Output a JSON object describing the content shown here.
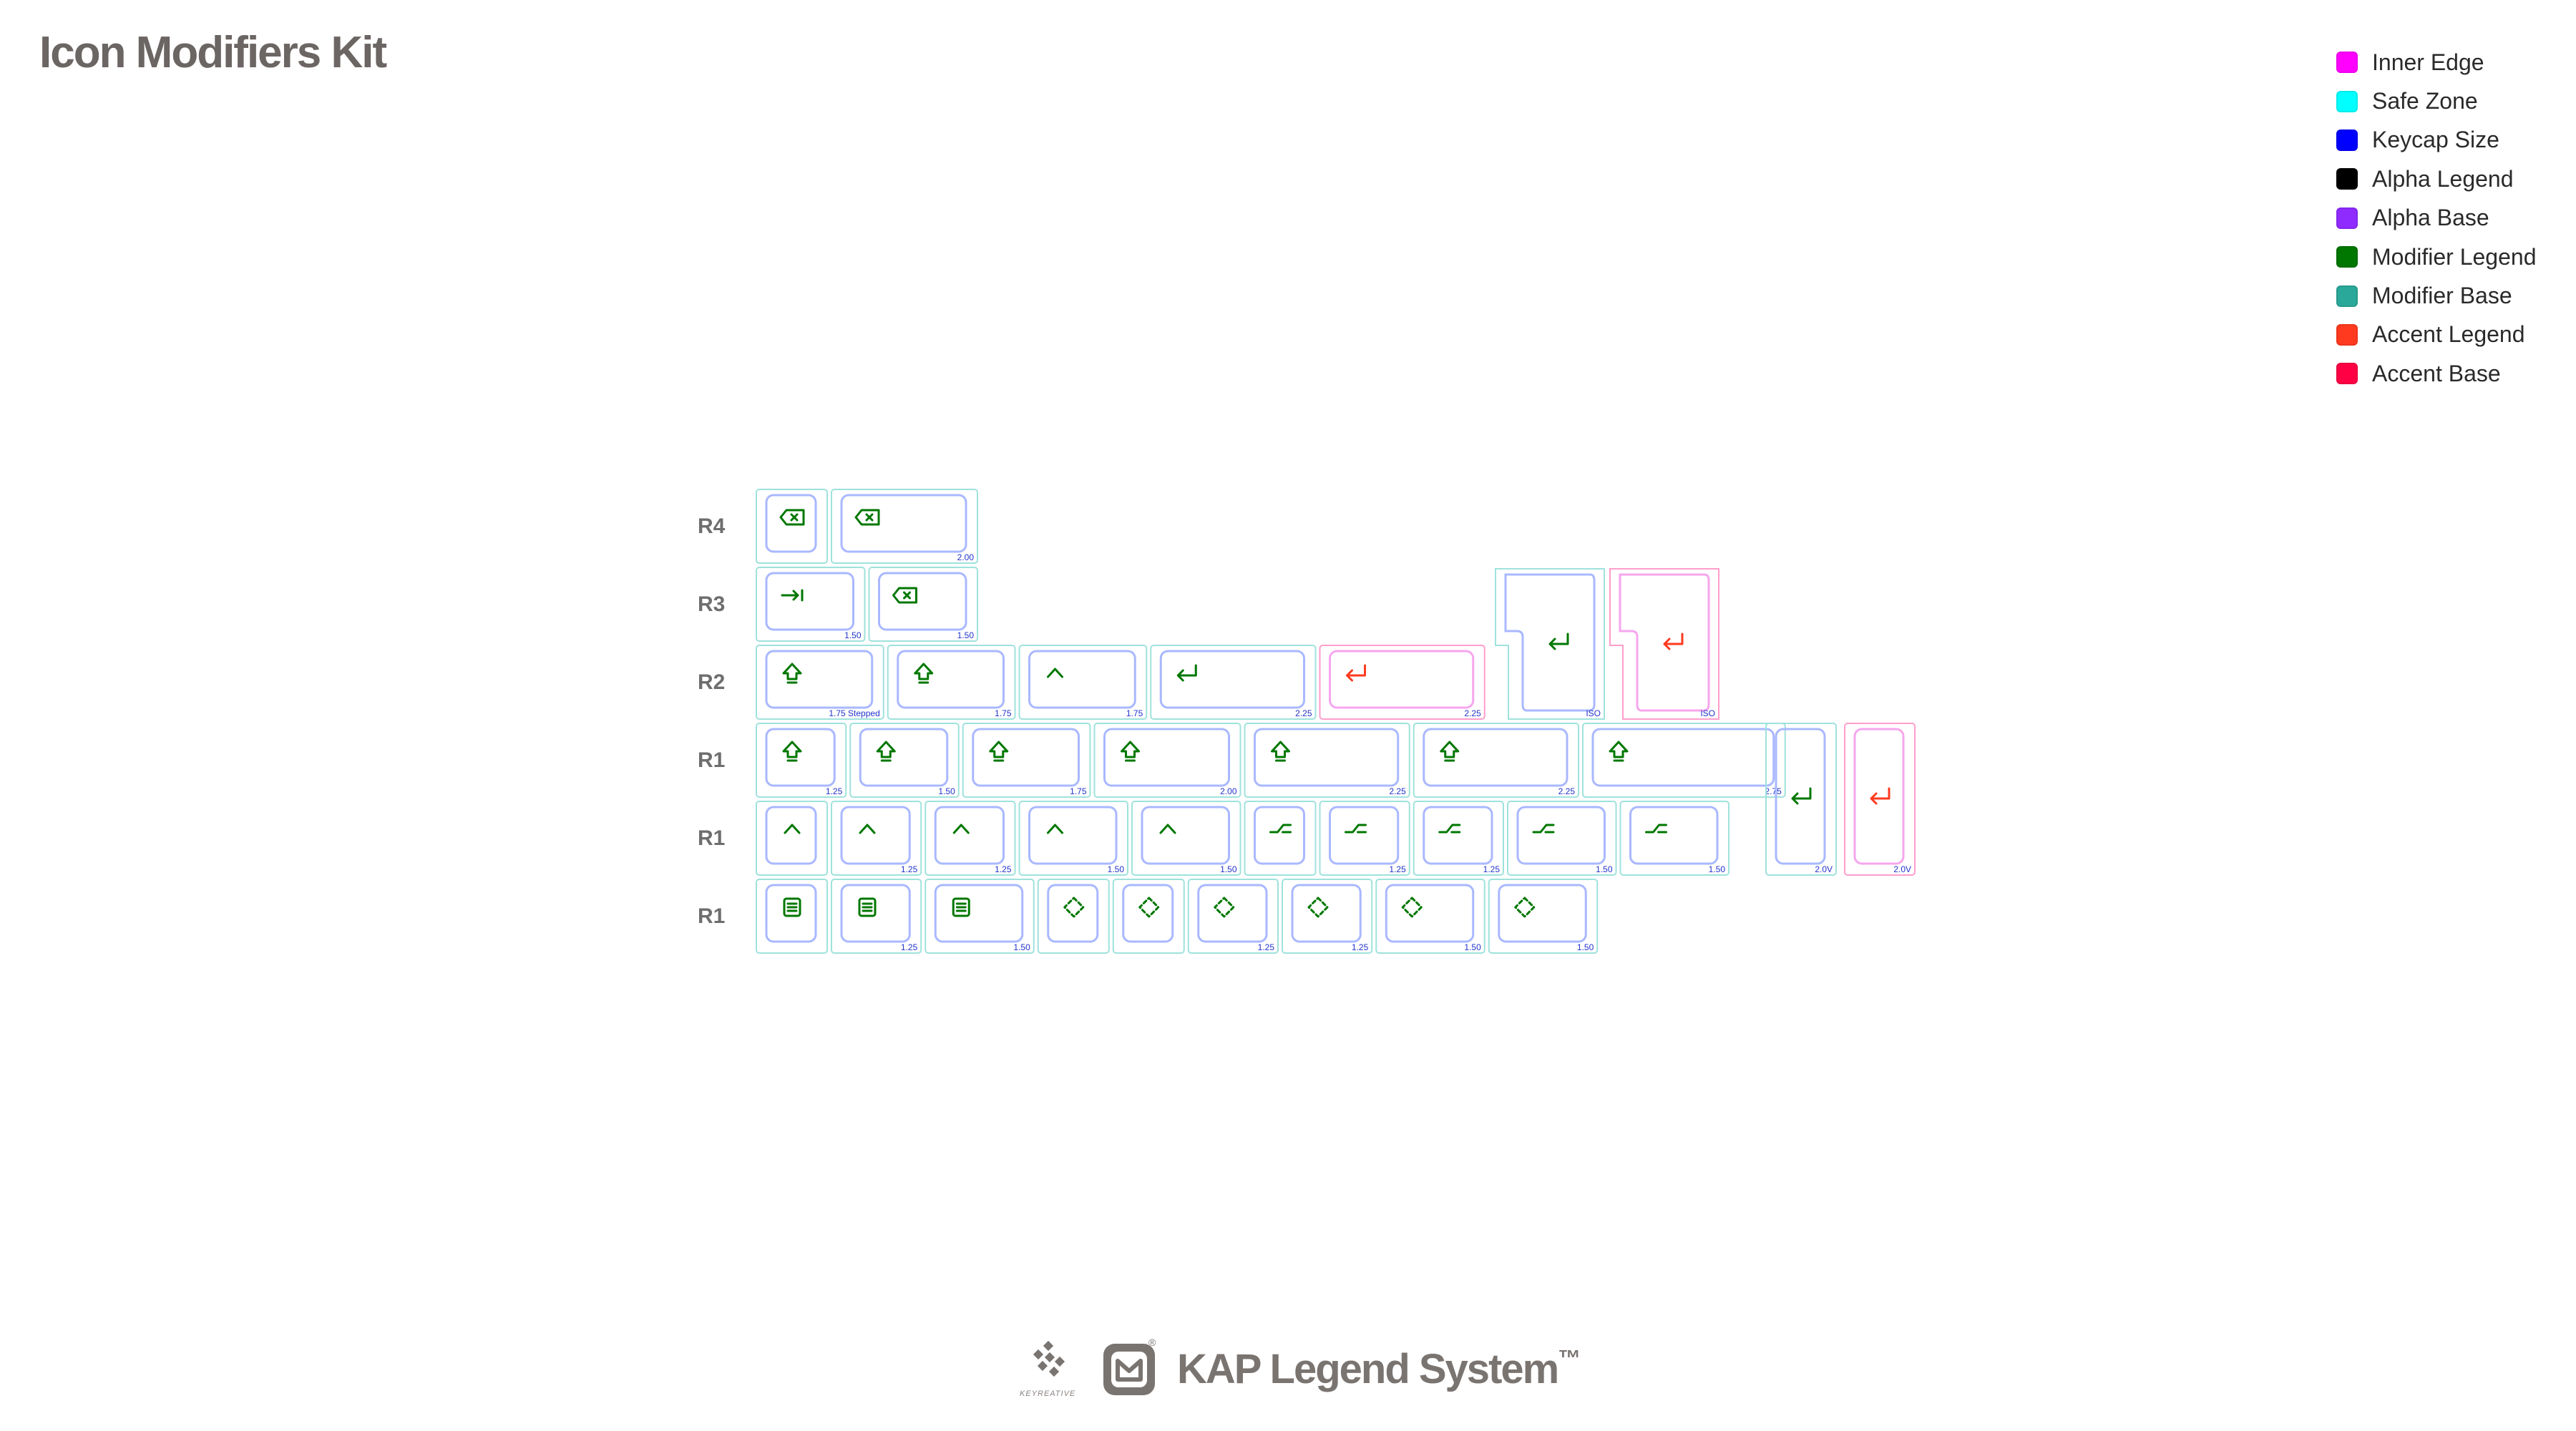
{
  "title": "Icon Modifiers Kit",
  "legend": [
    {
      "label": "Inner Edge",
      "color": "#ff00ff"
    },
    {
      "label": "Safe Zone",
      "color": "#00ffff"
    },
    {
      "label": "Keycap Size",
      "color": "#0000ff"
    },
    {
      "label": "Alpha Legend",
      "color": "#000000"
    },
    {
      "label": "Alpha Base",
      "color": "#8f2bff"
    },
    {
      "label": "Modifier Legend",
      "color": "#007700"
    },
    {
      "label": "Modifier Base",
      "color": "#2aa89a"
    },
    {
      "label": "Accent Legend",
      "color": "#ff3a1f"
    },
    {
      "label": "Accent Base",
      "color": "#ff0044"
    }
  ],
  "row_labels": [
    "R4",
    "R3",
    "R2",
    "R1",
    "R1",
    "R1"
  ],
  "rows": [
    [
      {
        "u": 1.0,
        "label": "",
        "icon": "backspace-icon",
        "accent": false
      },
      {
        "u": 2.0,
        "label": "2.00",
        "icon": "backspace-icon",
        "accent": false
      }
    ],
    [
      {
        "u": 1.5,
        "label": "1.50",
        "icon": "tab-icon",
        "accent": false
      },
      {
        "u": 1.5,
        "label": "1.50",
        "icon": "backspace-icon",
        "accent": false
      }
    ],
    [
      {
        "u": 1.75,
        "label": "1.75 Stepped",
        "icon": "shift-icon",
        "accent": false,
        "stepped": true
      },
      {
        "u": 1.75,
        "label": "1.75",
        "icon": "shift-icon",
        "accent": false
      },
      {
        "u": 1.75,
        "label": "1.75",
        "icon": "control-icon",
        "accent": false
      },
      {
        "u": 2.25,
        "label": "2.25",
        "icon": "enter-icon",
        "accent": false
      },
      {
        "u": 2.25,
        "label": "2.25",
        "icon": "enter-icon",
        "accent": true
      },
      {
        "u": 1.5,
        "label": "ISO",
        "icon": "enter-icon",
        "accent": false,
        "iso": true
      },
      {
        "u": 1.5,
        "label": "ISO",
        "icon": "enter-icon",
        "accent": true,
        "iso": true
      }
    ],
    [
      {
        "u": 1.25,
        "label": "1.25",
        "icon": "shift-icon",
        "accent": false
      },
      {
        "u": 1.5,
        "label": "1.50",
        "icon": "shift-icon",
        "accent": false
      },
      {
        "u": 1.75,
        "label": "1.75",
        "icon": "shift-icon",
        "accent": false
      },
      {
        "u": 2.0,
        "label": "2.00",
        "icon": "shift-icon",
        "accent": false
      },
      {
        "u": 2.25,
        "label": "2.25",
        "icon": "shift-icon",
        "accent": false
      },
      {
        "u": 2.25,
        "label": "2.25",
        "icon": "shift-icon",
        "accent": false
      },
      {
        "u": 2.75,
        "label": "2.75",
        "icon": "shift-icon",
        "accent": false
      }
    ],
    [
      {
        "u": 1.0,
        "label": "",
        "icon": "control-icon",
        "accent": false
      },
      {
        "u": 1.25,
        "label": "1.25",
        "icon": "control-icon",
        "accent": false
      },
      {
        "u": 1.25,
        "label": "1.25",
        "icon": "control-icon",
        "accent": false
      },
      {
        "u": 1.5,
        "label": "1.50",
        "icon": "control-icon",
        "accent": false
      },
      {
        "u": 1.5,
        "label": "1.50",
        "icon": "control-icon",
        "accent": false
      },
      {
        "u": 1.0,
        "label": "",
        "icon": "option-icon",
        "accent": false
      },
      {
        "u": 1.25,
        "label": "1.25",
        "icon": "option-icon",
        "accent": false
      },
      {
        "u": 1.25,
        "label": "1.25",
        "icon": "option-icon",
        "accent": false
      },
      {
        "u": 1.5,
        "label": "1.50",
        "icon": "option-icon",
        "accent": false
      },
      {
        "u": 1.5,
        "label": "1.50",
        "icon": "option-icon",
        "accent": false
      },
      {
        "u": 1.0,
        "label": "2.0V",
        "icon": "enter-icon",
        "accent": false,
        "vertical": true
      },
      {
        "u": 1.0,
        "label": "2.0V",
        "icon": "enter-icon",
        "accent": true,
        "vertical": true
      }
    ],
    [
      {
        "u": 1.0,
        "label": "",
        "icon": "menu-icon",
        "accent": false
      },
      {
        "u": 1.25,
        "label": "1.25",
        "icon": "menu-icon",
        "accent": false
      },
      {
        "u": 1.5,
        "label": "1.50",
        "icon": "menu-icon",
        "accent": false
      },
      {
        "u": 1.0,
        "label": "",
        "icon": "function-icon",
        "accent": false
      },
      {
        "u": 1.0,
        "label": "",
        "icon": "function-icon",
        "accent": false
      },
      {
        "u": 1.25,
        "label": "1.25",
        "icon": "function-icon",
        "accent": false
      },
      {
        "u": 1.25,
        "label": "1.25",
        "icon": "function-icon",
        "accent": false
      },
      {
        "u": 1.5,
        "label": "1.50",
        "icon": "function-icon",
        "accent": false
      },
      {
        "u": 1.5,
        "label": "1.50",
        "icon": "function-icon",
        "accent": false
      }
    ]
  ],
  "footer": {
    "brand": "KAP Legend System",
    "trademark": "™",
    "keyreative": "KEYREATIVE",
    "registered": "®"
  }
}
